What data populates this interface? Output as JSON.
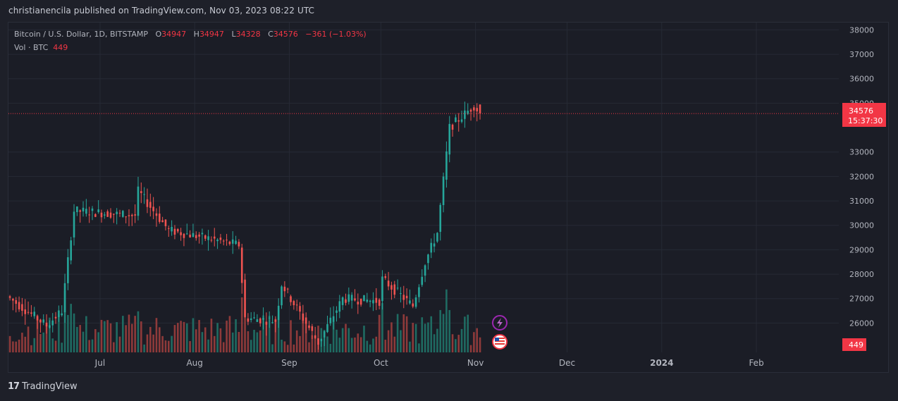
{
  "header": {
    "published_line": "christianencila published on TradingView.com, Nov 03, 2023 08:22 UTC"
  },
  "legend": {
    "symbol": "Bitcoin / U.S. Dollar, 1D, BITSTAMP",
    "o_label": "O",
    "o_value": "34947",
    "h_label": "H",
    "h_value": "34947",
    "l_label": "L",
    "l_value": "34328",
    "c_label": "C",
    "c_value": "34576",
    "change": "−361 (−1.03%)",
    "vol_label": "Vol · BTC",
    "vol_value": "449"
  },
  "price_tag": {
    "price": "34576",
    "countdown": "15:37:30"
  },
  "volume_tag": "449",
  "brand": {
    "logo": "17",
    "name": "TradingView"
  },
  "colors": {
    "up": "#26a69a",
    "down": "#ef5350",
    "up_vol": "#1f6b62",
    "down_vol": "#8e3a3a",
    "tag": "#f23645"
  },
  "chart_data": {
    "type": "candlestick",
    "title": "Bitcoin / U.S. Dollar, 1D, BITSTAMP",
    "ylim": [
      24800,
      38300
    ],
    "y_ticks": [
      26000,
      27000,
      28000,
      29000,
      30000,
      31000,
      32000,
      33000,
      35000,
      36000,
      37000,
      38000
    ],
    "x_ticks": [
      {
        "label": "Jul",
        "date": "2023-07-01"
      },
      {
        "label": "Aug",
        "date": "2023-08-01"
      },
      {
        "label": "Sep",
        "date": "2023-09-01"
      },
      {
        "label": "Oct",
        "date": "2023-10-01"
      },
      {
        "label": "Nov",
        "date": "2023-11-01"
      },
      {
        "label": "Dec",
        "date": "2023-12-01"
      },
      {
        "label": "2024",
        "date": "2024-01-01",
        "bold": true
      },
      {
        "label": "Feb",
        "date": "2024-02-01"
      }
    ],
    "x_range": [
      "2023-06-01",
      "2024-02-28"
    ],
    "last_price": 34576,
    "segments": [
      {
        "start": "2023-06-01",
        "end": "2023-06-14",
        "from": 27100,
        "to": 25900
      },
      {
        "start": "2023-06-14",
        "end": "2023-06-19",
        "from": 25900,
        "to": 26500
      },
      {
        "start": "2023-06-19",
        "end": "2023-06-23",
        "from": 26500,
        "to": 30600
      },
      {
        "start": "2023-06-23",
        "end": "2023-07-13",
        "from": 30600,
        "to": 30400
      },
      {
        "start": "2023-07-13",
        "end": "2023-07-14",
        "from": 30400,
        "to": 31400
      },
      {
        "start": "2023-07-14",
        "end": "2023-07-24",
        "from": 31400,
        "to": 29800
      },
      {
        "start": "2023-07-24",
        "end": "2023-08-16",
        "from": 29800,
        "to": 29200
      },
      {
        "start": "2023-08-16",
        "end": "2023-08-18",
        "from": 29200,
        "to": 26200
      },
      {
        "start": "2023-08-18",
        "end": "2023-08-28",
        "from": 26200,
        "to": 26100
      },
      {
        "start": "2023-08-28",
        "end": "2023-08-30",
        "from": 26100,
        "to": 27600
      },
      {
        "start": "2023-08-30",
        "end": "2023-09-11",
        "from": 27600,
        "to": 25200
      },
      {
        "start": "2023-09-11",
        "end": "2023-09-19",
        "from": 25200,
        "to": 27000
      },
      {
        "start": "2023-09-19",
        "end": "2023-10-01",
        "from": 27000,
        "to": 26900
      },
      {
        "start": "2023-10-01",
        "end": "2023-10-02",
        "from": 26900,
        "to": 27800
      },
      {
        "start": "2023-10-02",
        "end": "2023-10-12",
        "from": 27800,
        "to": 26700
      },
      {
        "start": "2023-10-12",
        "end": "2023-10-16",
        "from": 26700,
        "to": 28500
      },
      {
        "start": "2023-10-16",
        "end": "2023-10-20",
        "from": 28500,
        "to": 29700
      },
      {
        "start": "2023-10-20",
        "end": "2023-10-24",
        "from": 29700,
        "to": 34000
      },
      {
        "start": "2023-10-24",
        "end": "2023-11-01",
        "from": 34000,
        "to": 34900
      },
      {
        "start": "2023-11-01",
        "end": "2023-11-03",
        "from": 34900,
        "to": 34576
      }
    ]
  }
}
